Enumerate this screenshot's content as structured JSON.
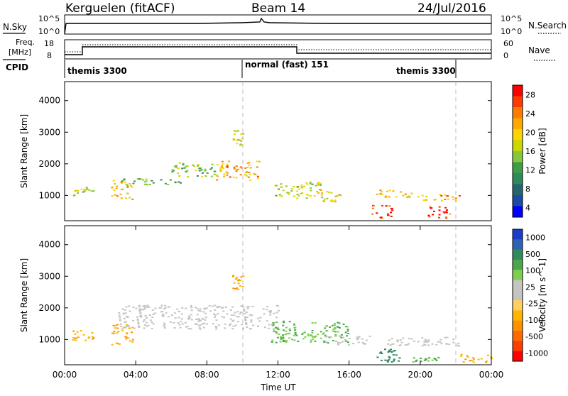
{
  "header": {
    "station": "Kerguelen (fitACF)",
    "beam": "Beam 14",
    "date": "24/Jul/2016"
  },
  "top_panels": {
    "nsky_label": "N.Sky",
    "nsearch_label": "N.Search",
    "nsky_ticks": [
      "10^5",
      "10^0"
    ],
    "nsearch_ticks": [
      "10^5",
      "10^0"
    ],
    "freq_label": "Freq.",
    "freq_unit": "[MHz]",
    "freq_ticks": [
      "18",
      "8"
    ],
    "nave_label": "Nave",
    "nave_ticks": [
      "60",
      "0"
    ],
    "cpid_label": "CPID",
    "cpid_segments": [
      "themis 3300",
      "normal (fast) 151",
      "themis 3300"
    ]
  },
  "chart_data": [
    {
      "type": "heatmap",
      "name": "power",
      "ylabel": "Slant Range [km]",
      "ylim": [
        200,
        4600
      ],
      "yticks": [
        1000,
        2000,
        3000,
        4000
      ],
      "xlim_hours": [
        0,
        24
      ],
      "colorbar": {
        "label": "Power [dB]",
        "ticks": [
          "28",
          "24",
          "20",
          "16",
          "12",
          "8",
          "4"
        ],
        "colors": [
          "#ff0000",
          "#ff3a00",
          "#ff7a00",
          "#ffa800",
          "#ffd400",
          "#c8d800",
          "#86c83c",
          "#3c9e46",
          "#2e8a5a",
          "#23666e",
          "#1a4aa6",
          "#0000ff"
        ]
      },
      "features": [
        {
          "t0": 0.4,
          "t1": 1.6,
          "r0": 1000,
          "r1": 1300,
          "level": 16
        },
        {
          "t0": 2.6,
          "t1": 3.8,
          "r0": 850,
          "r1": 1500,
          "level": 20
        },
        {
          "t0": 3.0,
          "t1": 6.5,
          "r0": 1350,
          "r1": 1550,
          "level": 12
        },
        {
          "t0": 6.0,
          "t1": 8.5,
          "r0": 1600,
          "r1": 2050,
          "level": 14
        },
        {
          "t0": 8.5,
          "t1": 10.9,
          "r0": 1500,
          "r1": 2100,
          "level": 22
        },
        {
          "t0": 9.4,
          "t1": 10.0,
          "r0": 2600,
          "r1": 3100,
          "level": 18
        },
        {
          "t0": 11.8,
          "t1": 14.4,
          "r0": 900,
          "r1": 1450,
          "level": 16
        },
        {
          "t0": 14.4,
          "t1": 15.6,
          "r0": 800,
          "r1": 1200,
          "level": 18
        },
        {
          "t0": 17.2,
          "t1": 18.4,
          "r0": 300,
          "r1": 700,
          "level": 28
        },
        {
          "t0": 17.5,
          "t1": 19.5,
          "r0": 950,
          "r1": 1200,
          "level": 20
        },
        {
          "t0": 19.8,
          "t1": 22.4,
          "r0": 850,
          "r1": 1050,
          "level": 22
        },
        {
          "t0": 20.4,
          "t1": 21.7,
          "r0": 300,
          "r1": 700,
          "level": 28
        }
      ]
    },
    {
      "type": "heatmap",
      "name": "velocity",
      "ylabel": "Slant Range [km]",
      "ylim": [
        200,
        4600
      ],
      "yticks": [
        1000,
        2000,
        3000,
        4000
      ],
      "xlim_hours": [
        0,
        24
      ],
      "xticks": [
        "00:00",
        "04:00",
        "08:00",
        "12:00",
        "16:00",
        "20:00",
        "00:00"
      ],
      "xlabel": "Time UT",
      "colorbar": {
        "label": "Velocity [m s^-1]",
        "ticks": [
          "1000",
          "500",
          "100",
          "25",
          "-25",
          "-100",
          "-500",
          "-1000"
        ],
        "colors": [
          "#1a3ccc",
          "#2e62b4",
          "#2f8b5e",
          "#4aa84a",
          "#7cd04e",
          "#c4c4c0",
          "#c4c4c0",
          "#ffd060",
          "#ffb400",
          "#ff9000",
          "#ff6a00",
          "#ff3c00",
          "#ff0000"
        ]
      },
      "features": [
        {
          "t0": 0.4,
          "t1": 1.6,
          "r0": 950,
          "r1": 1300,
          "velocity": -100
        },
        {
          "t0": 2.6,
          "t1": 3.8,
          "r0": 850,
          "r1": 1500,
          "velocity": -100
        },
        {
          "t0": 3.0,
          "t1": 12.0,
          "r0": 1350,
          "r1": 2100,
          "velocity": 0
        },
        {
          "t0": 9.4,
          "t1": 10.0,
          "r0": 2600,
          "r1": 3100,
          "velocity": -100
        },
        {
          "t0": 11.6,
          "t1": 16.0,
          "r0": 900,
          "r1": 1600,
          "velocity": 100
        },
        {
          "t0": 14.5,
          "t1": 17.2,
          "r0": 850,
          "r1": 1150,
          "velocity": 0
        },
        {
          "t0": 17.5,
          "t1": 19.0,
          "r0": 300,
          "r1": 750,
          "velocity": 500
        },
        {
          "t0": 18.0,
          "t1": 22.2,
          "r0": 800,
          "r1": 1100,
          "velocity": 0
        },
        {
          "t0": 19.5,
          "t1": 21.0,
          "r0": 300,
          "r1": 450,
          "velocity": 100
        },
        {
          "t0": 22.2,
          "t1": 24.0,
          "r0": 300,
          "r1": 550,
          "velocity": -100
        }
      ]
    }
  ]
}
